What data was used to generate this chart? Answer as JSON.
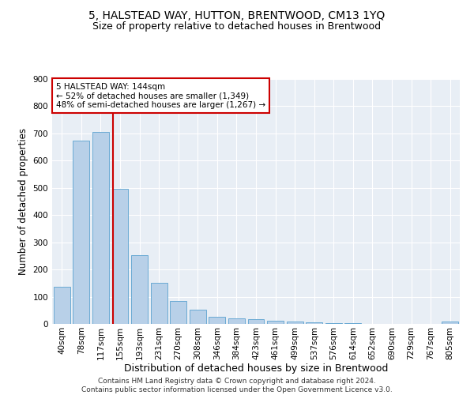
{
  "title": "5, HALSTEAD WAY, HUTTON, BRENTWOOD, CM13 1YQ",
  "subtitle": "Size of property relative to detached houses in Brentwood",
  "xlabel": "Distribution of detached houses by size in Brentwood",
  "ylabel": "Number of detached properties",
  "categories": [
    "40sqm",
    "78sqm",
    "117sqm",
    "155sqm",
    "193sqm",
    "231sqm",
    "270sqm",
    "308sqm",
    "346sqm",
    "384sqm",
    "423sqm",
    "461sqm",
    "499sqm",
    "537sqm",
    "576sqm",
    "614sqm",
    "652sqm",
    "690sqm",
    "729sqm",
    "767sqm",
    "805sqm"
  ],
  "values": [
    137,
    675,
    706,
    497,
    253,
    150,
    85,
    52,
    27,
    21,
    16,
    11,
    10,
    7,
    4,
    2,
    1,
    1,
    0,
    0,
    10
  ],
  "bar_color": "#b8d0e8",
  "bar_edge_color": "#6aaad4",
  "vline_color": "#cc0000",
  "annotation_text": "5 HALSTEAD WAY: 144sqm\n← 52% of detached houses are smaller (1,349)\n48% of semi-detached houses are larger (1,267) →",
  "annotation_box_color": "#ffffff",
  "annotation_box_edge": "#cc0000",
  "ylim": [
    0,
    900
  ],
  "yticks": [
    0,
    100,
    200,
    300,
    400,
    500,
    600,
    700,
    800,
    900
  ],
  "footer": "Contains HM Land Registry data © Crown copyright and database right 2024.\nContains public sector information licensed under the Open Government Licence v3.0.",
  "plot_bg_color": "#e8eef5",
  "title_fontsize": 10,
  "subtitle_fontsize": 9,
  "xlabel_fontsize": 9,
  "ylabel_fontsize": 8.5,
  "tick_fontsize": 7.5,
  "footer_fontsize": 6.5
}
